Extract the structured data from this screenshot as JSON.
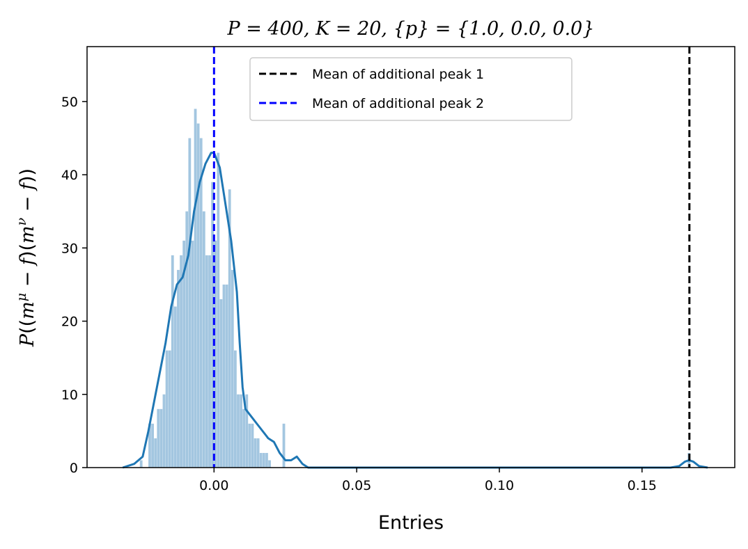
{
  "chart_data": {
    "type": "histogram",
    "title": "P = 400, K = 20, {p} = {1.0, 0.0, 0.0}",
    "xlabel": "Entries",
    "ylabel": "P((mμ − f)(mν − f))",
    "xlim": [
      -0.0445,
      0.1825
    ],
    "ylim": [
      0,
      57.5
    ],
    "xticks": [
      0.0,
      0.05,
      0.1,
      0.15
    ],
    "xtick_labels": [
      "0.00",
      "0.05",
      "0.10",
      "0.15"
    ],
    "yticks": [
      0,
      10,
      20,
      30,
      40,
      50
    ],
    "ytick_labels": [
      "0",
      "10",
      "20",
      "30",
      "40",
      "50"
    ],
    "grid": false,
    "legend_position": "top-center",
    "colors": {
      "histogram": "#a3c6e0",
      "kde": "#1f77b4",
      "peak1_line": "#000000",
      "peak2_line": "#0000ff"
    },
    "histogram": {
      "bin_width": 0.001,
      "bin_starts": [
        -0.026,
        -0.025,
        -0.024,
        -0.023,
        -0.022,
        -0.021,
        -0.02,
        -0.019,
        -0.018,
        -0.017,
        -0.016,
        -0.015,
        -0.014,
        -0.013,
        -0.012,
        -0.011,
        -0.01,
        -0.009,
        -0.008,
        -0.007,
        -0.006,
        -0.005,
        -0.004,
        -0.003,
        -0.002,
        -0.001,
        0.0,
        0.001,
        0.002,
        0.003,
        0.004,
        0.005,
        0.006,
        0.007,
        0.008,
        0.009,
        0.01,
        0.011,
        0.012,
        0.013,
        0.014,
        0.015,
        0.016,
        0.017,
        0.018,
        0.019,
        0.02,
        0.021,
        0.022,
        0.023,
        0.024,
        0.025,
        0.026,
        0.027,
        0.028,
        0.029,
        0.166
      ],
      "values": [
        1.0,
        0.0,
        0.0,
        6.0,
        6.0,
        4.0,
        8.0,
        8.0,
        10.0,
        16.0,
        16.0,
        29.0,
        22.0,
        27.0,
        29.0,
        31.0,
        35.0,
        45.0,
        31.0,
        49.0,
        47.0,
        45.0,
        35.0,
        29.0,
        29.0,
        39.0,
        31.0,
        43.0,
        23.0,
        25.0,
        25.0,
        38.0,
        27.0,
        16.0,
        10.0,
        10.0,
        8.0,
        10.0,
        6.0,
        6.0,
        4.0,
        4.0,
        2.0,
        2.0,
        2.0,
        1.0,
        0.0,
        0.0,
        0.0,
        0.0,
        6.0,
        0.0,
        0.0,
        0.0,
        0.0,
        0.0,
        2.0
      ]
    },
    "kde": {
      "x": [
        -0.032,
        -0.028,
        -0.025,
        -0.023,
        -0.021,
        -0.019,
        -0.017,
        -0.015,
        -0.013,
        -0.011,
        -0.009,
        -0.007,
        -0.005,
        -0.003,
        -0.001,
        0.0,
        0.002,
        0.004,
        0.006,
        0.008,
        0.009,
        0.01,
        0.011,
        0.013,
        0.015,
        0.017,
        0.019,
        0.021,
        0.023,
        0.025,
        0.027,
        0.029,
        0.031,
        0.033,
        0.036,
        0.05,
        0.1,
        0.15,
        0.16,
        0.163,
        0.165,
        0.1665,
        0.168,
        0.17,
        0.173
      ],
      "values": [
        0.0,
        0.5,
        1.5,
        5.0,
        9.0,
        13.0,
        17.0,
        22.0,
        25.0,
        26.0,
        29.0,
        35.0,
        39.0,
        41.5,
        43.0,
        43.0,
        41.0,
        36.0,
        31.0,
        24.0,
        17.0,
        11.0,
        8.0,
        7.0,
        6.0,
        5.0,
        4.0,
        3.5,
        2.0,
        1.0,
        1.0,
        1.5,
        0.5,
        0.0,
        0.0,
        0.0,
        0.0,
        0.0,
        0.0,
        0.2,
        0.8,
        1.0,
        0.8,
        0.2,
        0.0
      ]
    },
    "vertical_lines": [
      {
        "name": "Mean of additional peak 1",
        "x": 0.1666,
        "color": "#000000",
        "style": "dashed"
      },
      {
        "name": "Mean of additional peak 2",
        "x": 0.0,
        "color": "#0000ff",
        "style": "dashed"
      }
    ],
    "legend_entries": [
      "Mean of additional peak 1",
      "Mean of additional peak 2"
    ]
  }
}
